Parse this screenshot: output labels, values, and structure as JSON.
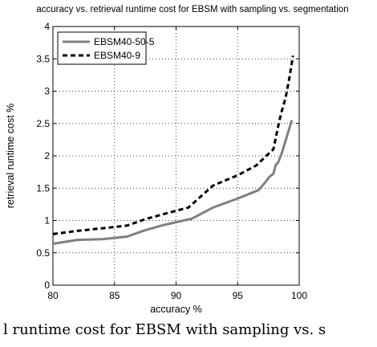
{
  "chart_data": {
    "type": "line",
    "title": "accuracy vs. retrieval runtime cost for EBSM with sampling vs. segmentation",
    "xlabel": "accuracy %",
    "ylabel": "retrieval runtime cost %",
    "xlim": [
      80,
      100
    ],
    "ylim": [
      0,
      4
    ],
    "xticks": [
      80,
      85,
      90,
      95,
      100
    ],
    "yticks": [
      0,
      0.5,
      1,
      1.5,
      2,
      2.5,
      3,
      3.5,
      4
    ],
    "grid": true,
    "legend_position": "top-left",
    "series": [
      {
        "name": "EBSM40-50-5",
        "style": "solid",
        "color": "#808080",
        "x": [
          80,
          82,
          84,
          86,
          87.5,
          89,
          91.3,
          93,
          95,
          96.7,
          97.2,
          97.6,
          97.9,
          98.1,
          98.3,
          98.6,
          99,
          99.4
        ],
        "y": [
          0.64,
          0.7,
          0.71,
          0.75,
          0.85,
          0.93,
          1.03,
          1.2,
          1.34,
          1.47,
          1.58,
          1.68,
          1.72,
          1.86,
          1.9,
          2.05,
          2.3,
          2.55
        ]
      },
      {
        "name": "EBSM40-9",
        "style": "dashed",
        "color": "#000000",
        "x": [
          80,
          82,
          84,
          86,
          87.5,
          89,
          91,
          93,
          95,
          96.5,
          97.5,
          97.9,
          98.1,
          98.4,
          98.6,
          98.9,
          99.2,
          99.5
        ],
        "y": [
          0.79,
          0.84,
          0.88,
          0.92,
          1.02,
          1.1,
          1.2,
          1.54,
          1.7,
          1.85,
          2.03,
          2.1,
          2.28,
          2.55,
          2.7,
          2.9,
          3.2,
          3.55
        ]
      }
    ]
  },
  "caption": "l runtime cost for EBSM with sampling vs. s"
}
